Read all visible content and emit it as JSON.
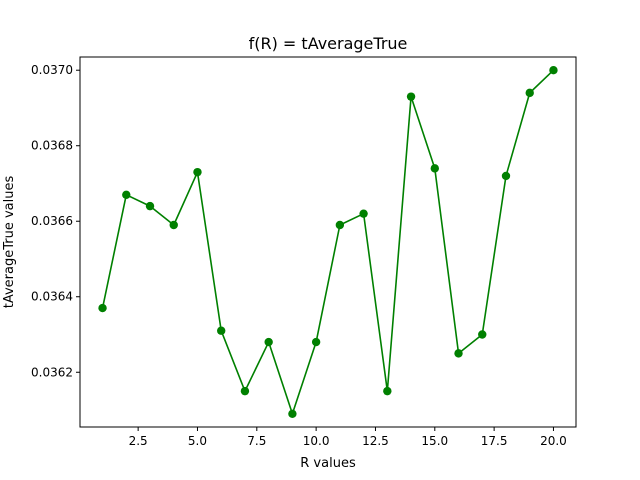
{
  "chart_data": {
    "type": "line",
    "title": "f(R) = tAverageTrue",
    "xlabel": "R values",
    "ylabel": "tAverageTrue values",
    "x": [
      1,
      2,
      3,
      4,
      5,
      6,
      7,
      8,
      9,
      10,
      11,
      12,
      13,
      14,
      15,
      16,
      17,
      18,
      19,
      20
    ],
    "series": [
      {
        "values": [
          0.03637,
          0.03667,
          0.03664,
          0.03659,
          0.03673,
          0.03631,
          0.03615,
          0.03628,
          0.03609,
          0.03628,
          0.03659,
          0.03662,
          0.03615,
          0.03693,
          0.03674,
          0.03625,
          0.0363,
          0.03672,
          0.03694,
          0.037
        ],
        "color": "#008000",
        "marker": "circle"
      }
    ],
    "xlim": [
      0.05,
      20.95
    ],
    "ylim": [
      0.036055,
      0.037035
    ],
    "xticks": [
      2.5,
      5.0,
      7.5,
      10.0,
      12.5,
      15.0,
      17.5,
      20.0
    ],
    "xtick_labels": [
      "2.5",
      "5.0",
      "7.5",
      "10.0",
      "12.5",
      "15.0",
      "17.5",
      "20.0"
    ],
    "yticks": [
      0.0362,
      0.0364,
      0.0366,
      0.0368,
      0.037
    ],
    "ytick_labels": [
      "0.0362",
      "0.0364",
      "0.0366",
      "0.0368",
      "0.0370"
    ],
    "grid": false,
    "legend": "none"
  }
}
